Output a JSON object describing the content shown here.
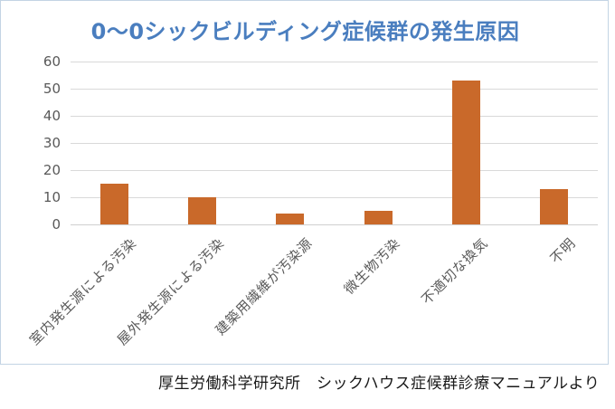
{
  "chart_data": {
    "type": "bar",
    "title": "0～0シックビルディング症候群の発生原因",
    "categories": [
      "室内発生源による汚染",
      "屋外発生源による汚染",
      "建築用繊維が汚染源",
      "微生物汚染",
      "不適切な換気",
      "不明"
    ],
    "values": [
      15,
      10,
      4,
      5,
      53,
      13
    ],
    "xlabel": "",
    "ylabel": "",
    "ylim": [
      0,
      60
    ],
    "yticks": [
      0,
      10,
      20,
      30,
      40,
      50,
      60
    ],
    "grid": true,
    "legend_position": "none",
    "bar_color": "#c9692a",
    "title_color": "#4a7ebf",
    "axis_text_color": "#595959",
    "gridline_color": "#d9d9d9"
  },
  "caption": "厚生労働科学研究所　シックハウス症候群診療マニュアルより"
}
